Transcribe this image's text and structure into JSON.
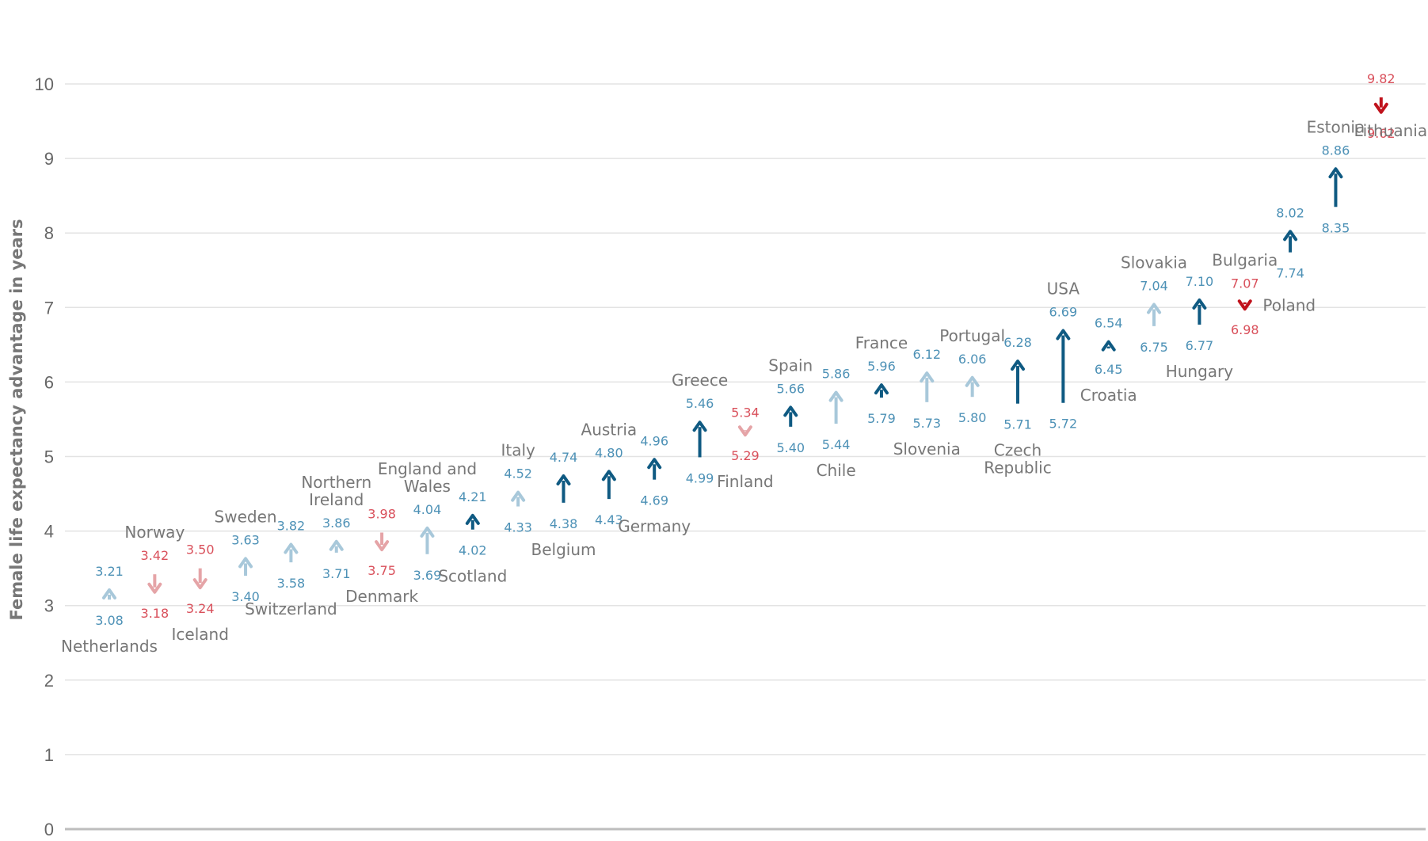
{
  "chart_data": {
    "type": "arrow-dot",
    "xlabel": "",
    "ylabel": "Female life expectancy advantage in years",
    "ylim": [
      0,
      10
    ],
    "yticks": [
      0,
      1,
      2,
      3,
      4,
      5,
      6,
      7,
      8,
      9,
      10
    ],
    "grid": true,
    "colors": {
      "increase_large": "#0f5a82",
      "increase_small": "#a8c8da",
      "decrease_large": "#c0121c",
      "decrease_small": "#e5a4a7",
      "label_blue": "#4d91b6",
      "label_red": "#d9505b"
    },
    "series": [
      {
        "name": "Netherlands",
        "start": 3.08,
        "end": 3.21,
        "label_pos": "below",
        "start_label": "3.08",
        "end_label": "3.21",
        "shade": "light"
      },
      {
        "name": "Norway",
        "start": 3.42,
        "end": 3.18,
        "label_pos": "above",
        "start_label": "3.42",
        "end_label": "3.18",
        "shade": "light"
      },
      {
        "name": "Iceland",
        "start": 3.5,
        "end": 3.24,
        "label_pos": "below",
        "start_label": "3.50",
        "end_label": "3.24",
        "shade": "light"
      },
      {
        "name": "Sweden",
        "start": 3.4,
        "end": 3.63,
        "label_pos": "above",
        "start_label": "3.40",
        "end_label": "3.63",
        "shade": "light"
      },
      {
        "name": "Switzerland",
        "start": 3.58,
        "end": 3.82,
        "label_pos": "below",
        "start_label": "3.58",
        "end_label": "3.82",
        "shade": "light"
      },
      {
        "name": "Northern Ireland",
        "start": 3.71,
        "end": 3.86,
        "label_pos": "above",
        "start_label": "3.71",
        "end_label": "3.86",
        "shade": "light"
      },
      {
        "name": "Denmark",
        "start": 3.98,
        "end": 3.75,
        "label_pos": "below",
        "start_label": "3.98",
        "end_label": "3.75",
        "shade": "light"
      },
      {
        "name": "England and Wales",
        "start": 3.69,
        "end": 4.04,
        "label_pos": "above",
        "start_label": "3.69",
        "end_label": "4.04",
        "shade": "light"
      },
      {
        "name": "Scotland",
        "start": 4.02,
        "end": 4.21,
        "label_pos": "below",
        "start_label": "4.02",
        "end_label": "4.21",
        "shade": "dark"
      },
      {
        "name": "Italy",
        "start": 4.33,
        "end": 4.52,
        "label_pos": "above",
        "start_label": "4.33",
        "end_label": "4.52",
        "shade": "light"
      },
      {
        "name": "Belgium",
        "start": 4.38,
        "end": 4.74,
        "label_pos": "below",
        "start_label": "4.38",
        "end_label": "4.74",
        "shade": "dark"
      },
      {
        "name": "Austria",
        "start": 4.43,
        "end": 4.8,
        "label_pos": "above",
        "start_label": "4.43",
        "end_label": "4.80",
        "shade": "dark"
      },
      {
        "name": "Germany",
        "start": 4.69,
        "end": 4.96,
        "label_pos": "below",
        "start_label": "4.69",
        "end_label": "4.96",
        "shade": "dark"
      },
      {
        "name": "Greece",
        "start": 4.99,
        "end": 5.46,
        "label_pos": "above",
        "start_label": "4.99",
        "end_label": "5.46",
        "shade": "dark"
      },
      {
        "name": "Finland",
        "start": 5.34,
        "end": 5.29,
        "label_pos": "below",
        "start_label": "5.34",
        "end_label": "5.29",
        "shade": "light"
      },
      {
        "name": "Spain",
        "start": 5.4,
        "end": 5.66,
        "label_pos": "above",
        "start_label": "5.40",
        "end_label": "5.66",
        "shade": "dark"
      },
      {
        "name": "Chile",
        "start": 5.44,
        "end": 5.86,
        "label_pos": "below",
        "start_label": "5.44",
        "end_label": "5.86",
        "shade": "light"
      },
      {
        "name": "France",
        "start": 5.79,
        "end": 5.96,
        "label_pos": "above",
        "start_label": "5.79",
        "end_label": "5.96",
        "shade": "dark"
      },
      {
        "name": "Slovenia",
        "start": 5.73,
        "end": 6.12,
        "label_pos": "below",
        "start_label": "5.73",
        "end_label": "6.12",
        "shade": "light"
      },
      {
        "name": "Portugal",
        "start": 5.8,
        "end": 6.06,
        "label_pos": "above",
        "start_label": "5.80",
        "end_label": "6.06",
        "shade": "light"
      },
      {
        "name": "Czech Republic",
        "start": 5.71,
        "end": 6.28,
        "label_pos": "below",
        "start_label": "5.71",
        "end_label": "6.28",
        "shade": "dark"
      },
      {
        "name": "USA",
        "start": 5.72,
        "end": 6.69,
        "label_pos": "above",
        "start_label": "5.72",
        "end_label": "6.69",
        "shade": "dark"
      },
      {
        "name": "Croatia",
        "start": 6.45,
        "end": 6.54,
        "label_pos": "below",
        "start_label": "6.45",
        "end_label": "6.54",
        "shade": "dark"
      },
      {
        "name": "Slovakia",
        "start": 6.75,
        "end": 7.04,
        "label_pos": "above",
        "start_label": "6.75",
        "end_label": "7.04",
        "shade": "light"
      },
      {
        "name": "Hungary",
        "start": 6.77,
        "end": 7.1,
        "label_pos": "below",
        "start_label": "6.77",
        "end_label": "7.10",
        "shade": "dark"
      },
      {
        "name": "Bulgaria",
        "start": 7.07,
        "end": 6.98,
        "label_pos": "above",
        "start_label": "7.07",
        "end_label": "6.98",
        "shade": "dark"
      },
      {
        "name": "Poland",
        "start": 7.74,
        "end": 8.02,
        "label_pos": "right",
        "start_label": "7.74",
        "end_label": "8.02",
        "shade": "dark"
      },
      {
        "name": "Estonia",
        "start": 8.35,
        "end": 8.86,
        "label_pos": "above",
        "start_label": "8.35",
        "end_label": "8.86",
        "shade": "dark"
      },
      {
        "name": "Lithuania",
        "start": 9.82,
        "end": 9.62,
        "label_pos": "below",
        "start_label": "9.82",
        "end_label": "9.62",
        "shade": "dark"
      }
    ]
  }
}
